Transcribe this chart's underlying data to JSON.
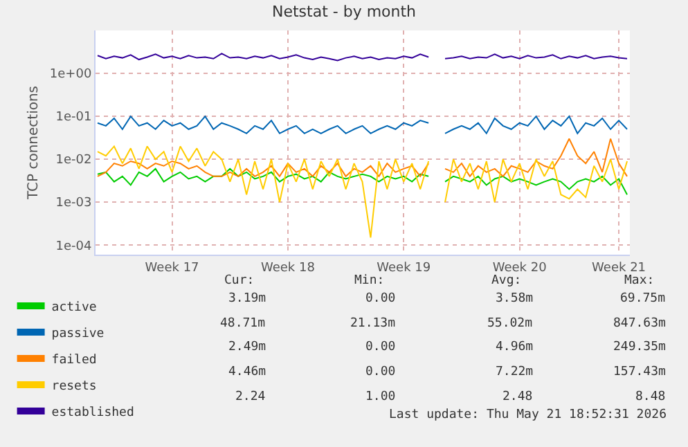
{
  "chart_data": {
    "type": "line",
    "title": "Netstat - by month",
    "ylabel": "TCP connections",
    "x": [
      "2026-04-19T18:00",
      "2026-04-20T06:00",
      "2026-04-20T18:00",
      "2026-04-21T06:00",
      "2026-04-21T18:00",
      "2026-04-22T06:00",
      "2026-04-22T18:00",
      "2026-04-23T06:00",
      "2026-04-23T18:00",
      "2026-04-24T06:00",
      "2026-04-24T18:00",
      "2026-04-25T06:00",
      "2026-04-25T18:00",
      "2026-04-26T06:00",
      "2026-04-26T18:00",
      "2026-04-27T06:00",
      "2026-04-27T18:00",
      "2026-04-28T06:00",
      "2026-04-28T18:00",
      "2026-04-29T06:00",
      "2026-04-29T18:00",
      "2026-04-30T06:00",
      "2026-04-30T18:00",
      "2026-05-01T06:00",
      "2026-05-01T18:00",
      "2026-05-02T06:00",
      "2026-05-02T18:00",
      "2026-05-03T06:00",
      "2026-05-03T18:00",
      "2026-05-04T06:00",
      "2026-05-04T18:00",
      "2026-05-05T06:00",
      "2026-05-05T18:00",
      "2026-05-06T06:00",
      "2026-05-06T18:00",
      "2026-05-07T06:00",
      "2026-05-07T18:00",
      "2026-05-08T06:00",
      "2026-05-08T18:00",
      "2026-05-09T06:00",
      "2026-05-09T18:00",
      "2026-05-10T06:00",
      "2026-05-10T18:00",
      "2026-05-11T06:00",
      "2026-05-11T18:00",
      "2026-05-12T06:00",
      "2026-05-12T18:00",
      "2026-05-13T06:00",
      "2026-05-13T18:00",
      "2026-05-14T06:00",
      "2026-05-14T18:00",
      "2026-05-15T06:00",
      "2026-05-15T18:00",
      "2026-05-16T06:00",
      "2026-05-16T18:00",
      "2026-05-17T06:00",
      "2026-05-17T18:00",
      "2026-05-18T06:00",
      "2026-05-18T18:00",
      "2026-05-19T06:00",
      "2026-05-19T18:00",
      "2026-05-20T06:00",
      "2026-05-20T18:00",
      "2026-05-21T06:00",
      "2026-05-21T18:00"
    ],
    "series": [
      {
        "name": "active",
        "color": "#00cc00",
        "values": [
          0.0045,
          0.005,
          0.003,
          0.004,
          0.0025,
          0.005,
          0.004,
          0.006,
          0.003,
          0.004,
          0.005,
          0.0035,
          0.004,
          0.003,
          0.004,
          0.004,
          0.006,
          0.004,
          0.005,
          0.0035,
          0.004,
          0.005,
          0.003,
          0.004,
          0.0045,
          0.0035,
          0.004,
          0.003,
          0.005,
          0.004,
          0.0035,
          0.004,
          0.0045,
          0.004,
          0.003,
          0.004,
          0.0035,
          0.004,
          0.003,
          0.0045,
          0.004,
          null,
          0.003,
          0.004,
          0.0035,
          0.003,
          0.004,
          0.0025,
          0.0035,
          0.004,
          0.003,
          0.0035,
          0.003,
          0.0025,
          0.003,
          0.0035,
          0.003,
          0.002,
          0.003,
          0.0035,
          0.003,
          0.004,
          0.0025,
          0.0035,
          0.0015
        ]
      },
      {
        "name": "passive",
        "color": "#0066b3",
        "values": [
          0.07,
          0.06,
          0.09,
          0.05,
          0.1,
          0.06,
          0.07,
          0.05,
          0.08,
          0.06,
          0.07,
          0.05,
          0.06,
          0.1,
          0.05,
          0.07,
          0.06,
          0.05,
          0.04,
          0.06,
          0.05,
          0.08,
          0.04,
          0.05,
          0.06,
          0.04,
          0.05,
          0.04,
          0.05,
          0.06,
          0.04,
          0.05,
          0.06,
          0.04,
          0.05,
          0.06,
          0.05,
          0.07,
          0.06,
          0.08,
          0.07,
          null,
          0.04,
          0.05,
          0.06,
          0.05,
          0.07,
          0.04,
          0.09,
          0.06,
          0.05,
          0.07,
          0.06,
          0.1,
          0.05,
          0.08,
          0.06,
          0.1,
          0.04,
          0.07,
          0.06,
          0.09,
          0.05,
          0.08,
          0.05
        ]
      },
      {
        "name": "failed",
        "color": "#ff8000",
        "values": [
          0.004,
          0.005,
          0.008,
          0.007,
          0.009,
          0.008,
          0.006,
          0.008,
          0.007,
          0.009,
          0.008,
          0.006,
          0.007,
          0.005,
          0.004,
          0.004,
          0.005,
          0.004,
          0.006,
          0.004,
          0.005,
          0.007,
          0.004,
          0.008,
          0.005,
          0.006,
          0.004,
          0.007,
          0.005,
          0.008,
          0.004,
          0.006,
          0.005,
          0.007,
          0.004,
          0.008,
          0.005,
          0.006,
          0.007,
          0.004,
          0.008,
          null,
          0.006,
          0.005,
          0.008,
          0.004,
          0.007,
          0.005,
          0.006,
          0.004,
          0.007,
          0.006,
          0.005,
          0.009,
          0.007,
          0.006,
          0.012,
          0.03,
          0.012,
          0.008,
          0.015,
          0.005,
          0.03,
          0.008,
          0.004
        ]
      },
      {
        "name": "resets",
        "color": "#ffcc00",
        "values": [
          0.015,
          0.012,
          0.02,
          0.008,
          0.018,
          0.006,
          0.02,
          0.01,
          0.015,
          0.005,
          0.02,
          0.009,
          0.018,
          0.007,
          0.015,
          0.01,
          0.003,
          0.01,
          0.0015,
          0.009,
          0.002,
          0.01,
          0.001,
          0.008,
          0.003,
          0.01,
          0.002,
          0.009,
          0.004,
          0.01,
          0.002,
          0.008,
          0.003,
          0.00015,
          0.009,
          0.002,
          0.01,
          0.003,
          0.008,
          0.002,
          0.009,
          null,
          0.001,
          0.01,
          0.003,
          0.008,
          0.002,
          0.009,
          0.001,
          0.01,
          0.003,
          0.008,
          0.002,
          0.01,
          0.004,
          0.009,
          0.0015,
          0.0012,
          0.002,
          0.0013,
          0.007,
          0.003,
          0.01,
          0.002,
          0.009
        ]
      },
      {
        "name": "established",
        "color": "#330099",
        "values": [
          2.6,
          2.2,
          2.5,
          2.3,
          2.7,
          2.1,
          2.4,
          2.8,
          2.3,
          2.5,
          2.2,
          2.6,
          2.3,
          2.4,
          2.2,
          2.9,
          2.3,
          2.4,
          2.2,
          2.5,
          2.3,
          2.6,
          2.2,
          2.4,
          2.7,
          2.3,
          2.1,
          2.4,
          2.2,
          2.0,
          2.3,
          2.5,
          2.2,
          2.4,
          2.1,
          2.3,
          2.2,
          2.5,
          2.3,
          2.8,
          2.4,
          null,
          2.2,
          2.3,
          2.5,
          2.2,
          2.4,
          2.3,
          2.8,
          2.3,
          2.5,
          2.2,
          2.6,
          2.3,
          2.4,
          2.7,
          2.2,
          2.5,
          2.3,
          2.6,
          2.2,
          2.4,
          2.5,
          2.3,
          2.2
        ]
      }
    ],
    "log": "y",
    "xlim": [
      "2026-04-19T15:00",
      "2026-05-21T22:00"
    ],
    "xticks": [
      {
        "value": "2026-04-24T06:00",
        "label": "Week 17"
      },
      {
        "value": "2026-05-01T06:00",
        "label": "Week 18"
      },
      {
        "value": "2026-05-08T06:00",
        "label": "Week 19"
      },
      {
        "value": "2026-05-15T06:00",
        "label": "Week 20"
      },
      {
        "value": "2026-05-21T06:00",
        "label": "Week 21"
      }
    ],
    "ylim": [
      6e-05,
      10
    ],
    "yticks": [
      {
        "value": 0.0001,
        "label": "1e-04"
      },
      {
        "value": 0.001,
        "label": "1e-03"
      },
      {
        "value": 0.01,
        "label": "1e-02"
      },
      {
        "value": 0.1,
        "label": "1e-01"
      },
      {
        "value": 1,
        "label": "1e+00"
      }
    ],
    "grid": true,
    "legend": "bottom left",
    "marker": "none",
    "line_style": "solid",
    "annotations": [
      "Cur:",
      "Min:",
      "Avg:",
      "Max:",
      "3.19m",
      "0.00",
      "3.58m",
      "69.75m",
      "48.71m",
      "21.13m",
      "55.02m",
      "847.63m",
      "2.49m",
      "0.00",
      "4.96m",
      "249.35m",
      "4.46m",
      "0.00",
      "7.22m",
      "157.43m",
      "2.24",
      "1.00",
      "2.48",
      "8.48",
      "Last update: Thu May 21 18:52:31 2026"
    ]
  }
}
